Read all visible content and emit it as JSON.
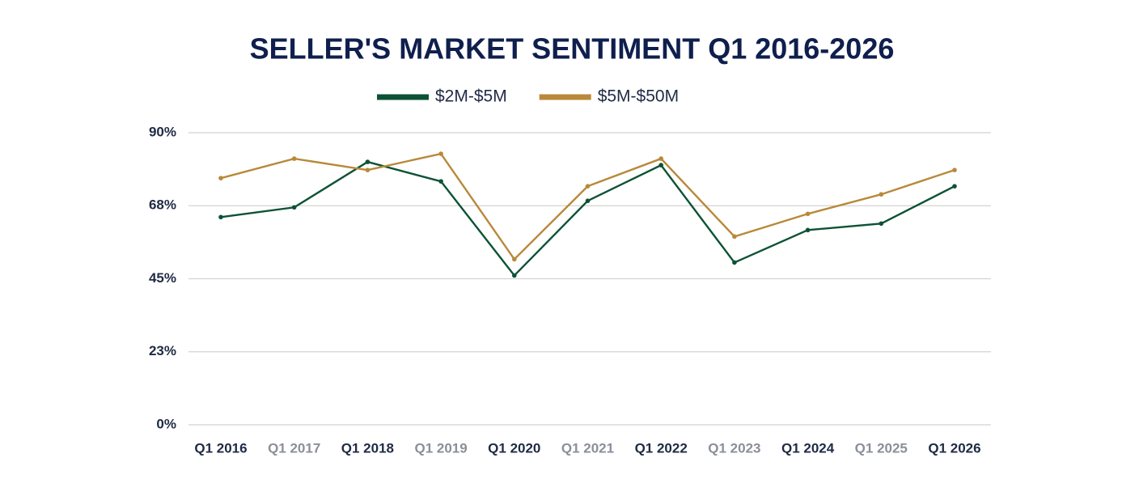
{
  "chart_data": {
    "type": "line",
    "title": "SELLER'S MARKET SENTIMENT Q1 2016-2026",
    "categories": [
      "Q1 2016",
      "Q1 2017",
      "Q1 2018",
      "Q1 2019",
      "Q1 2020",
      "Q1 2021",
      "Q1 2022",
      "Q1 2023",
      "Q1 2024",
      "Q1 2025",
      "Q1 2026"
    ],
    "series": [
      {
        "name": "$2M-$5M",
        "color": "#0d5235",
        "values": [
          64,
          67,
          81,
          75,
          46,
          69,
          80,
          50,
          60,
          62,
          73.5
        ]
      },
      {
        "name": "$5M-$50M",
        "color": "#b8893a",
        "values": [
          76,
          82,
          78.5,
          83.5,
          51,
          73.5,
          82,
          58,
          65,
          71,
          78.5
        ]
      }
    ],
    "ylim": [
      0,
      90
    ],
    "yticks": [
      {
        "value": 0,
        "label": "0%"
      },
      {
        "value": 22.5,
        "label": "23%"
      },
      {
        "value": 45,
        "label": "45%"
      },
      {
        "value": 67.5,
        "label": "68%"
      },
      {
        "value": 90,
        "label": "90%"
      }
    ],
    "grid": true,
    "legend": "top"
  }
}
